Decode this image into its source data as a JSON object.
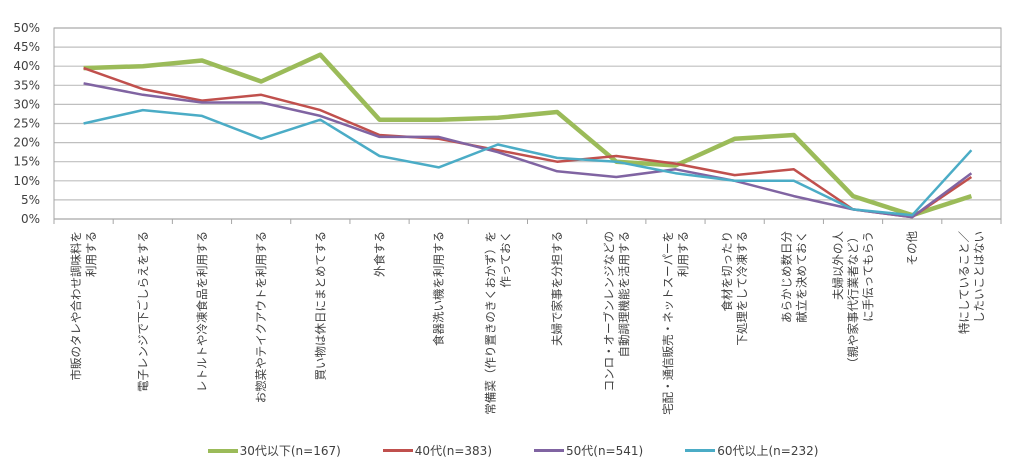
{
  "chart_data": {
    "type": "line",
    "title": "",
    "xlabel": "",
    "ylabel": "",
    "ylim": [
      0,
      50
    ],
    "y_ticks": [
      "0%",
      "5%",
      "10%",
      "15%",
      "20%",
      "25%",
      "30%",
      "35%",
      "40%",
      "45%",
      "50%"
    ],
    "grid": true,
    "legend_position": "bottom",
    "categories": [
      [
        "市販のタレや合わせ調味料を",
        "利用する"
      ],
      [
        "電子レンジで下ごしらえをする"
      ],
      [
        "レトルトや冷凍食品を利用する"
      ],
      [
        "お惣菜やテイクアウトを利用する"
      ],
      [
        "買い物は休日にまとめてする"
      ],
      [
        "外食する"
      ],
      [
        "食器洗い機を利用する"
      ],
      [
        "常備菜（作り置きのきくおかず）を",
        "作っておく"
      ],
      [
        "夫婦で家事を分担する"
      ],
      [
        "コンロ・オーブンレンジなどの",
        "自動調理機能を活用する"
      ],
      [
        "宅配・通信販売・ネットスーパーを",
        "利用する"
      ],
      [
        "食材を切ったり",
        "下処理をして冷凍する"
      ],
      [
        "あらかじめ数日分",
        "献立を決めておく"
      ],
      [
        "夫婦以外の人",
        "（親や家事代行業者など）",
        "に手伝ってもらう"
      ],
      [
        "その他"
      ],
      [
        "特にしていること／",
        "したいことはない"
      ]
    ],
    "series": [
      {
        "name": "30代以下(n=167)",
        "color": "#9BBB59",
        "values": [
          39.5,
          40,
          41.5,
          36,
          43,
          26,
          26,
          26.5,
          28,
          15,
          14,
          21,
          22,
          6,
          1,
          6
        ]
      },
      {
        "name": "40代(n=383)",
        "color": "#C0504D",
        "values": [
          39.5,
          34,
          31,
          32.5,
          28.5,
          22,
          21,
          18,
          15,
          16.5,
          14.5,
          11.5,
          13,
          2.5,
          0.5,
          11
        ]
      },
      {
        "name": "50代(n=541)",
        "color": "#8064A2",
        "values": [
          35.5,
          32.5,
          30.5,
          30.5,
          27,
          21.5,
          21.5,
          17.5,
          12.5,
          11,
          13,
          10,
          6,
          2.5,
          0.5,
          12
        ]
      },
      {
        "name": "60代以上(n=232)",
        "color": "#4BACC6",
        "values": [
          25,
          28.5,
          27,
          21,
          26,
          16.5,
          13.5,
          19.5,
          16,
          15,
          12,
          10,
          10,
          2.5,
          1,
          18
        ]
      }
    ]
  }
}
